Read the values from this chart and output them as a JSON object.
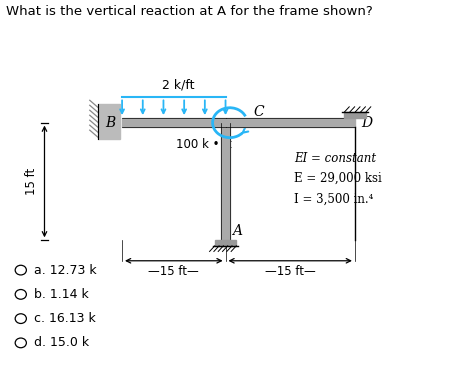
{
  "title": "What is the vertical reaction at A for the frame shown?",
  "distributed_load_label": "2 k/ft",
  "moment_label": "100 k • ft",
  "dim_label_left": "15 ft",
  "dim_label_bottom1": "—15 ft—",
  "dim_label_bottom2": "—15 ft—",
  "ei_lines": [
    "EI = constant",
    "E = 29,000 ksi",
    "I = 3,500 in.⁴"
  ],
  "options": [
    "a. 12.73 k",
    "b. 1.14 k",
    "c. 16.13 k",
    "d. 15.0 k"
  ],
  "bg_color": "#ffffff",
  "frame_color": "#000000",
  "beam_color": "#aaaaaa",
  "load_arrow_color": "#29b6f6",
  "text_color": "#000000",
  "wall_color": "#bbbbbb",
  "support_color": "#999999"
}
